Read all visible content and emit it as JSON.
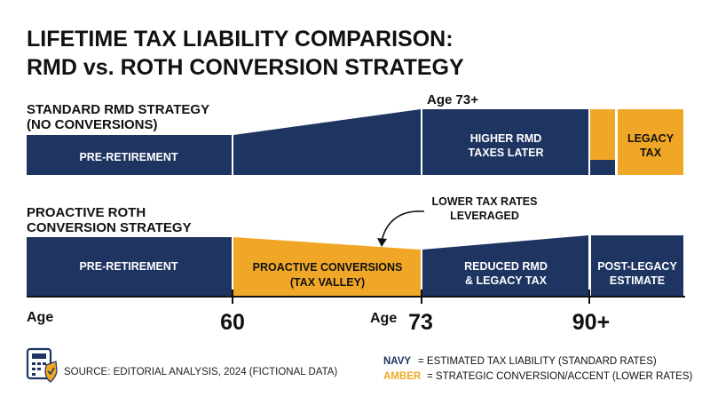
{
  "chart_data": {
    "type": "timeline-bar",
    "title_line1": "LIFETIME TAX LIABILITY COMPARISON:",
    "title_line2": "RMD vs. ROTH CONVERSION STRATEGY",
    "colors": {
      "navy": "#1e3461",
      "amber": "#f0a727",
      "text": "#111111"
    },
    "strategies": [
      {
        "label_line1": "STANDARD RMD STRATEGY",
        "label_line2": "(NO CONVERSIONS)",
        "age_note": "Age 73+",
        "segments": [
          {
            "from_age": 50,
            "to_age": 60,
            "color": "navy",
            "text_line1": "PRE-RETIREMENT",
            "text_line2": ""
          },
          {
            "from_age": 60,
            "to_age": 73,
            "color": "navy",
            "text_line1": "",
            "text_line2": ""
          },
          {
            "from_age": 73,
            "to_age": 90,
            "color": "navy",
            "text_line1": "HIGHER RMD",
            "text_line2": "TAXES LATER"
          },
          {
            "from_age": 90,
            "to_age": 100,
            "color": "amber",
            "text_line1": "LEGACY",
            "text_line2": "TAX"
          }
        ]
      },
      {
        "label_line1": "PROACTIVE ROTH",
        "label_line2": "CONVERSION STRATEGY",
        "annotation_line1": "LOWER TAX RATES",
        "annotation_line2": "LEVERAGED",
        "segments": [
          {
            "from_age": 50,
            "to_age": 60,
            "color": "navy",
            "text_line1": "PRE-RETIREMENT",
            "text_line2": ""
          },
          {
            "from_age": 60,
            "to_age": 73,
            "color": "amber",
            "text_line1": "PROACTIVE CONVERSIONS",
            "text_line2": "(TAX VALLEY)"
          },
          {
            "from_age": 73,
            "to_age": 90,
            "color": "navy",
            "text_line1": "REDUCED RMD",
            "text_line2": "& LEGACY TAX"
          },
          {
            "from_age": 90,
            "to_age": 100,
            "color": "navy",
            "text_line1": "POST-LEGACY",
            "text_line2": "ESTIMATE"
          }
        ]
      }
    ],
    "x_axis": {
      "label": "Age",
      "ticks": [
        "60",
        "73",
        "90+"
      ],
      "tick_prefix_73": "Age"
    },
    "legend": [
      {
        "key": "NAVY",
        "text": "= ESTIMATED TAX LIABILITY (STANDARD RATES)",
        "color": "navy"
      },
      {
        "key": "AMBER",
        "text": "= STRATEGIC CONVERSION/ACCENT (LOWER RATES)",
        "color": "amber"
      }
    ]
  },
  "footer": {
    "source": "SOURCE: EDITORIAL ANALYSIS, 2024 (FICTIONAL DATA)",
    "icon": "calculator-shield-icon"
  }
}
